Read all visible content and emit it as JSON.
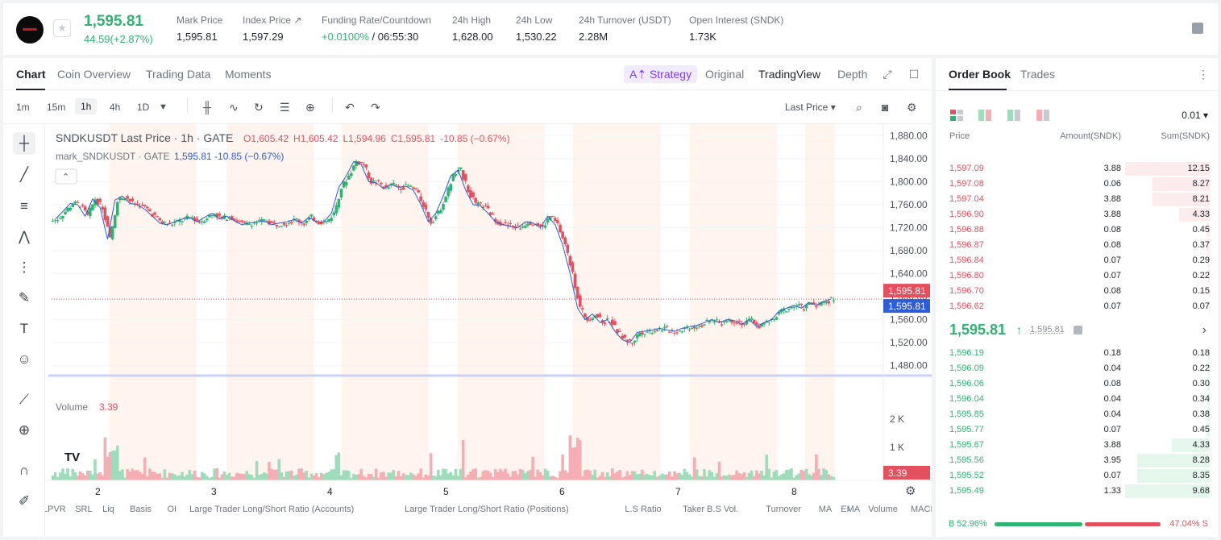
{
  "header": {
    "price": "1,595.81",
    "change": "44.59(+2.87%)",
    "stats": [
      {
        "label": "Mark Price",
        "value": "1,595.81"
      },
      {
        "label": "Index Price ↗",
        "value": "1,597.29"
      },
      {
        "label": "Funding Rate/Countdown",
        "value_green": "+0.0100%",
        "value_rest": " / 06:55:30"
      },
      {
        "label": "24h High",
        "value": "1,628.00"
      },
      {
        "label": "24h Low",
        "value": "1,530.22"
      },
      {
        "label": "24h Turnover (USDT)",
        "value": "2.28M"
      },
      {
        "label": "Open Interest (SNDK)",
        "value": "1.73K"
      }
    ]
  },
  "chart_tabs": [
    "Chart",
    "Coin Overview",
    "Trading Data",
    "Moments"
  ],
  "strategy_label": "A⇡ Strategy",
  "view_options": [
    "Original",
    "TradingView",
    "Depth"
  ],
  "timeframes": [
    "1m",
    "15m",
    "1h",
    "4h",
    "1D"
  ],
  "active_timeframe": "1h",
  "last_price_select": "Last Price ▾",
  "legend": {
    "symbol": "SNDKUSDT Last Price · 1h · GATE",
    "ohlc_o": "O1,605.42",
    "ohlc_h": "H1,605.42",
    "ohlc_l": "L1,594.96",
    "ohlc_c": "C1,595.81",
    "ohlc_chg": "-10.85 (−0.67%)",
    "mark_label": "mark_SNDKUSDT · GATE",
    "mark_values": "1,595.81  -10.85  (−0.67%)",
    "volume_label": "Volume",
    "volume_value": "3.39"
  },
  "indicator_bar": [
    "LPVR",
    "SRL",
    "Liq",
    "Basis",
    "OI",
    "Large Trader Long/Short Ratio (Accounts)",
    "Large Trader Long/Short Ratio (Positions)",
    "L.S Ratio",
    "Taker B.S Vol.",
    "Turnover",
    "MA",
    "EMA",
    "Volume",
    "MACD"
  ],
  "chart_data": {
    "type": "candlestick",
    "ylim": [
      1460,
      1900
    ],
    "y_ticks": [
      "1,880.00",
      "1,840.00",
      "1,800.00",
      "1,760.00",
      "1,720.00",
      "1,680.00",
      "1,640.00",
      "1,600.00",
      "1,560.00",
      "1,520.00",
      "1,480.00"
    ],
    "y_tick_values": [
      1880,
      1840,
      1800,
      1760,
      1720,
      1680,
      1640,
      1600,
      1560,
      1520,
      1480
    ],
    "x_ticks": [
      "2",
      "3",
      "4",
      "5",
      "6",
      "7",
      "8"
    ],
    "volume_ticks": [
      "2 K",
      "1 K"
    ],
    "volume_tick_values": [
      2000,
      1000
    ],
    "last_price_label": "1,595.81",
    "mark_price_label": "1,595.81",
    "volume_last_label": "3.39",
    "last_price": 1595.81,
    "series": [
      {
        "name": "SNDKUSDT Last Price",
        "close_path": [
          1735,
          1748,
          1762,
          1760,
          1740,
          1770,
          1755,
          1700,
          1768,
          1775,
          1762,
          1760,
          1752,
          1740,
          1728,
          1725,
          1730,
          1735,
          1738,
          1730,
          1738,
          1745,
          1735,
          1740,
          1732,
          1725,
          1728,
          1730,
          1732,
          1725,
          1728,
          1730,
          1734,
          1728,
          1738,
          1730,
          1730,
          1745,
          1790,
          1810,
          1835,
          1830,
          1800,
          1798,
          1788,
          1795,
          1790,
          1792,
          1785,
          1760,
          1730,
          1745,
          1775,
          1810,
          1820,
          1785,
          1760,
          1758,
          1745,
          1730,
          1725,
          1722,
          1720,
          1730,
          1728,
          1720,
          1740,
          1725,
          1690,
          1640,
          1580,
          1560,
          1570,
          1555,
          1560,
          1540,
          1525,
          1520,
          1538,
          1540,
          1542,
          1545,
          1542,
          1540,
          1545,
          1548,
          1550,
          1555,
          1560,
          1555,
          1560,
          1558,
          1552,
          1560,
          1548,
          1555,
          1560,
          1575,
          1580,
          1585,
          1580,
          1590,
          1585,
          1592,
          1596
        ]
      }
    ]
  },
  "orderbook": {
    "tabs": [
      "Order Book",
      "Trades"
    ],
    "step": "0.01 ▾",
    "headers": {
      "price": "Price",
      "amount": "Amount(SNDK)",
      "sum": "Sum(SNDK)"
    },
    "asks": [
      {
        "price": "1,597.09",
        "amount": "3.88",
        "sum": "12.15",
        "depth": 1.0
      },
      {
        "price": "1,597.08",
        "amount": "0.06",
        "sum": "8.27",
        "depth": 0.68
      },
      {
        "price": "1,597.04",
        "amount": "3.88",
        "sum": "8.21",
        "depth": 0.68
      },
      {
        "price": "1,596.90",
        "amount": "3.88",
        "sum": "4.33",
        "depth": 0.36
      },
      {
        "price": "1,596.88",
        "amount": "0.08",
        "sum": "0.45",
        "depth": 0.04
      },
      {
        "price": "1,596.87",
        "amount": "0.08",
        "sum": "0.37",
        "depth": 0.03
      },
      {
        "price": "1,596.84",
        "amount": "0.07",
        "sum": "0.29",
        "depth": 0.02
      },
      {
        "price": "1,596.80",
        "amount": "0.07",
        "sum": "0.22",
        "depth": 0.02
      },
      {
        "price": "1,596.70",
        "amount": "0.08",
        "sum": "0.15",
        "depth": 0.01
      },
      {
        "price": "1,596.62",
        "amount": "0.07",
        "sum": "0.07",
        "depth": 0.01
      }
    ],
    "mid_price": "1,595.81",
    "mid_arrow": "↑",
    "mark_price": "1,595.81",
    "mid_chevron": "›",
    "bids": [
      {
        "price": "1,596.19",
        "amount": "0.18",
        "sum": "0.18",
        "depth": 0.02
      },
      {
        "price": "1,596.09",
        "amount": "0.04",
        "sum": "0.22",
        "depth": 0.02
      },
      {
        "price": "1,596.06",
        "amount": "0.08",
        "sum": "0.30",
        "depth": 0.03
      },
      {
        "price": "1,596.04",
        "amount": "0.04",
        "sum": "0.34",
        "depth": 0.03
      },
      {
        "price": "1,595.85",
        "amount": "0.04",
        "sum": "0.38",
        "depth": 0.04
      },
      {
        "price": "1,595.77",
        "amount": "0.07",
        "sum": "0.45",
        "depth": 0.04
      },
      {
        "price": "1,595.67",
        "amount": "3.88",
        "sum": "4.33",
        "depth": 0.45
      },
      {
        "price": "1,595.56",
        "amount": "3.95",
        "sum": "8.28",
        "depth": 0.86
      },
      {
        "price": "1,595.52",
        "amount": "0.07",
        "sum": "8.35",
        "depth": 0.86
      },
      {
        "price": "1,595.49",
        "amount": "1.33",
        "sum": "9.68",
        "depth": 1.0
      }
    ],
    "buy_ratio": "B 52.96%",
    "sell_ratio": "47.04% S",
    "buy_fraction": 0.5296
  },
  "colors": {
    "up": "#2fb373",
    "down": "#e5505e",
    "mark": "#2e5bd6",
    "accent": "#7d3cff"
  }
}
